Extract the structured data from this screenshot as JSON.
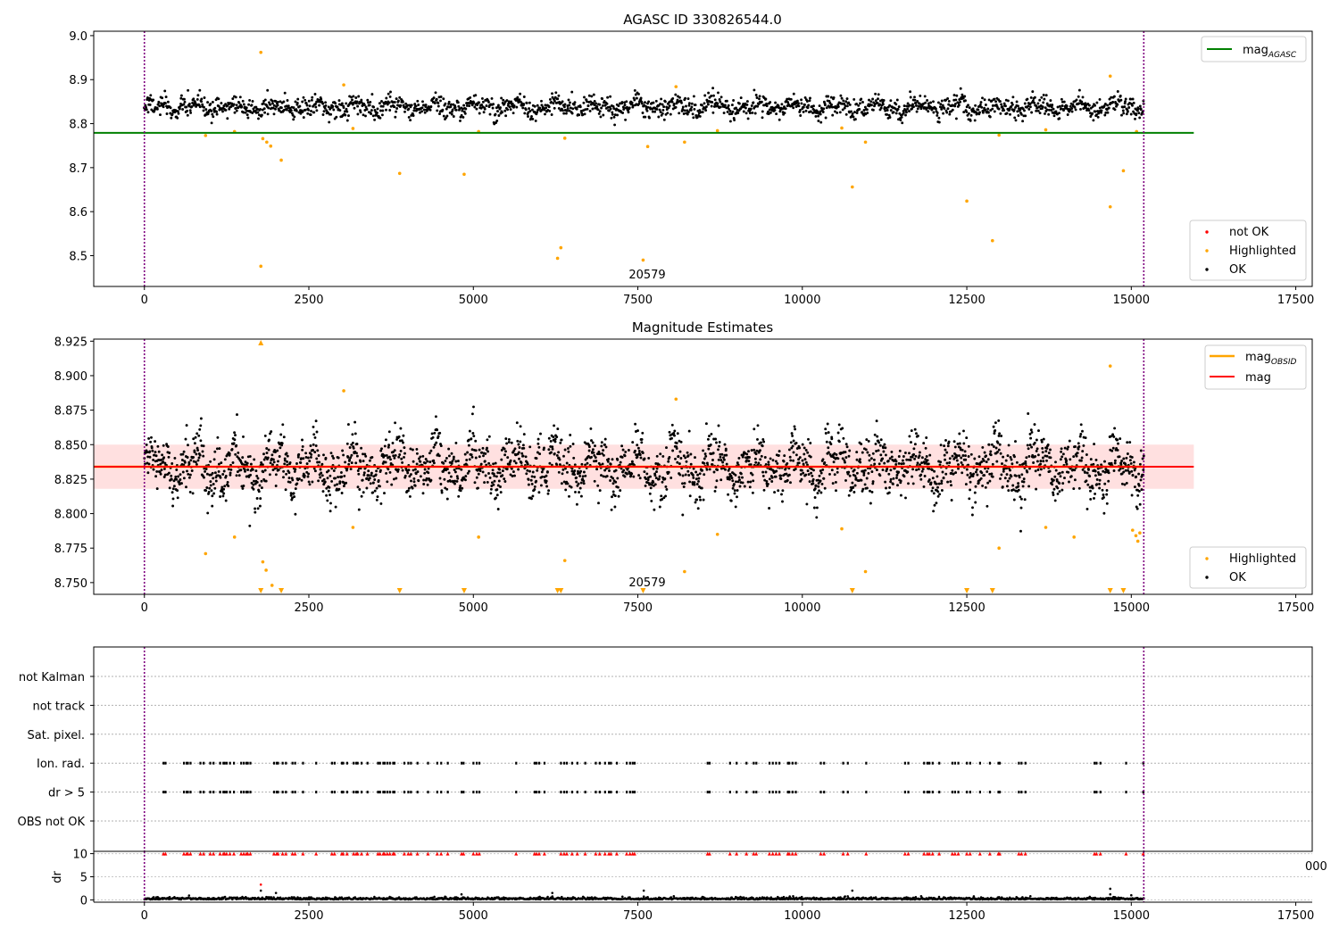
{
  "chart_data": [
    {
      "type": "scatter",
      "title": "AGASC ID 330826544.0",
      "xlabel": "",
      "ylabel": "",
      "xlim": [
        -770,
        17750
      ],
      "ylim": [
        8.43,
        9.01
      ],
      "x_ticks": [
        "0",
        "2500",
        "5000",
        "7500",
        "10000",
        "12500",
        "15000",
        "17500"
      ],
      "y_ticks": [
        "8.5",
        "8.6",
        "8.7",
        "8.8",
        "8.9",
        "9.0"
      ],
      "annotation": "20579",
      "reference_line": {
        "label": "mag_AGASC",
        "value": 8.779,
        "x_end": 15950,
        "color": "#008000"
      },
      "vertical_lines": [
        0,
        15190
      ],
      "ok_series": {
        "name": "OK",
        "color": "#000000",
        "x_start": 0,
        "x_end": 15190,
        "mean": 8.838,
        "spread": 0.018,
        "point_count": 1900
      },
      "highlighted": {
        "name": "Highlighted",
        "color": "#ffa500",
        "points": [
          [
            930,
            8.773
          ],
          [
            1370,
            8.782
          ],
          [
            1770,
            8.962
          ],
          [
            1770,
            8.476
          ],
          [
            1800,
            8.766
          ],
          [
            1860,
            8.758
          ],
          [
            1920,
            8.749
          ],
          [
            2080,
            8.717
          ],
          [
            3030,
            8.888
          ],
          [
            3170,
            8.789
          ],
          [
            3880,
            8.687
          ],
          [
            4860,
            8.685
          ],
          [
            5080,
            8.782
          ],
          [
            6280,
            8.494
          ],
          [
            6330,
            8.518
          ],
          [
            6390,
            8.767
          ],
          [
            7580,
            8.49
          ],
          [
            7650,
            8.748
          ],
          [
            8080,
            8.884
          ],
          [
            8210,
            8.758
          ],
          [
            8710,
            8.784
          ],
          [
            10600,
            8.79
          ],
          [
            10760,
            8.656
          ],
          [
            10960,
            8.758
          ],
          [
            12500,
            8.624
          ],
          [
            12890,
            8.534
          ],
          [
            12990,
            8.774
          ],
          [
            13700,
            8.786
          ],
          [
            14680,
            8.908
          ],
          [
            14680,
            8.611
          ],
          [
            14880,
            8.693
          ],
          [
            15080,
            8.782
          ]
        ]
      },
      "not_ok": {
        "name": "not OK",
        "color": "#ff0000"
      },
      "legends": [
        {
          "items": [
            {
              "label": "mag",
              "sub": "AGASC",
              "color": "#008000"
            }
          ]
        },
        {
          "items": [
            {
              "label": "not OK",
              "color": "#ff0000"
            },
            {
              "label": "Highlighted",
              "color": "#ffa500"
            },
            {
              "label": "OK",
              "color": "#000000"
            }
          ]
        }
      ]
    },
    {
      "type": "scatter",
      "title": "Magnitude Estimates",
      "xlabel": "",
      "ylabel": "",
      "xlim": [
        -770,
        17750
      ],
      "ylim": [
        8.7415,
        8.9265
      ],
      "x_ticks": [
        "0",
        "2500",
        "5000",
        "7500",
        "10000",
        "12500",
        "15000",
        "17500"
      ],
      "y_ticks": [
        "8.750",
        "8.775",
        "8.800",
        "8.825",
        "8.850",
        "8.875",
        "8.900",
        "8.925"
      ],
      "annotation": "20579",
      "band": {
        "low": 8.818,
        "high": 8.85,
        "x_end": 15950,
        "color": "#ffcccc"
      },
      "mag_line": {
        "label": "mag",
        "value": 8.834,
        "color": "#ff0000"
      },
      "obsid_line": {
        "label": "mag_OBSID",
        "value": 8.834,
        "color": "#ffa500"
      },
      "vertical_lines": [
        0,
        15190
      ],
      "ok_series": {
        "name": "OK",
        "color": "#000000",
        "x_start": 0,
        "x_end": 15190,
        "mean": 8.834,
        "spread": 0.016,
        "point_count": 2600
      },
      "highlighted": {
        "name": "Highlighted",
        "color": "#ffa500",
        "points": [
          [
            930,
            8.771
          ],
          [
            1370,
            8.783
          ],
          [
            1800,
            8.765
          ],
          [
            1850,
            8.759
          ],
          [
            1940,
            8.748
          ],
          [
            3030,
            8.889
          ],
          [
            3170,
            8.79
          ],
          [
            5080,
            8.783
          ],
          [
            6390,
            8.766
          ],
          [
            8080,
            8.883
          ],
          [
            8210,
            8.758
          ],
          [
            8710,
            8.785
          ],
          [
            10600,
            8.789
          ],
          [
            10960,
            8.758
          ],
          [
            12990,
            8.775
          ],
          [
            13700,
            8.79
          ],
          [
            14130,
            8.783
          ],
          [
            14680,
            8.907
          ],
          [
            15020,
            8.788
          ],
          [
            15070,
            8.784
          ],
          [
            15100,
            8.78
          ],
          [
            15130,
            8.786
          ]
        ]
      },
      "below_range_markers": [
        1770,
        2080,
        3880,
        4860,
        6280,
        6330,
        7580,
        10760,
        12500,
        12890,
        14680,
        14880
      ],
      "above_range_markers": [
        1770
      ],
      "legends": [
        {
          "items": [
            {
              "label": "mag",
              "sub": "OBSID",
              "color": "#ffa500"
            },
            {
              "label": "mag",
              "color": "#ff0000"
            }
          ]
        },
        {
          "items": [
            {
              "label": "Highlighted",
              "color": "#ffa500"
            },
            {
              "label": "OK",
              "color": "#000000"
            }
          ]
        }
      ]
    },
    {
      "type": "scatter",
      "title": "",
      "xlabel": "",
      "ylabel": "",
      "xlim": [
        -770,
        17750
      ],
      "categories": [
        "not Kalman",
        "not track",
        "Sat. pixel.",
        "Ion. rad.",
        "dr > 5",
        "OBS not OK"
      ],
      "flag_times": [
        290,
        320,
        600,
        640,
        660,
        700,
        850,
        900,
        1000,
        1050,
        1150,
        1200,
        1220,
        1250,
        1300,
        1360,
        1470,
        1510,
        1550,
        1570,
        1610,
        1970,
        2010,
        2030,
        2100,
        2150,
        2250,
        2290,
        2410,
        2610,
        2850,
        2890,
        3000,
        3020,
        3080,
        3180,
        3220,
        3240,
        3300,
        3390,
        3550,
        3580,
        3630,
        3650,
        3690,
        3730,
        3780,
        3800,
        3950,
        4010,
        4050,
        4150,
        4310,
        4450,
        4510,
        4610,
        4820,
        4850,
        5000,
        5050,
        5090,
        5650,
        5930,
        5960,
        6000,
        6080,
        6330,
        6380,
        6420,
        6500,
        6580,
        6700,
        6860,
        6920,
        7000,
        7060,
        7090,
        7180,
        7330,
        7380,
        7420,
        7450,
        8560,
        8590,
        8900,
        9000,
        9150,
        9260,
        9300,
        9500,
        9550,
        9600,
        9650,
        9780,
        9800,
        9850,
        9900,
        10280,
        10330,
        10620,
        10690,
        10970,
        11560,
        11610,
        11850,
        11900,
        11930,
        11980,
        12080,
        12280,
        12320,
        12370,
        12500,
        12550,
        12700,
        12850,
        12980,
        13000,
        13290,
        13330,
        13390,
        14440,
        14470,
        14530,
        14920,
        15180
      ],
      "dr_panel": {
        "ylabel": "dr",
        "y_ticks": [
          "0",
          "5",
          "10"
        ],
        "ylim": [
          -0.5,
          10.5
        ],
        "cap_value": 10,
        "cap_color": "#ff0000",
        "base_color": "#000000",
        "outliers": [
          [
            1770,
            3.3
          ],
          [
            1770,
            2.0
          ],
          [
            2000,
            1.5
          ],
          [
            4820,
            1.2
          ],
          [
            6200,
            1.5
          ],
          [
            7590,
            2.0
          ],
          [
            10760,
            2.0
          ],
          [
            14680,
            2.4
          ],
          [
            14680,
            1.2
          ],
          [
            15000,
            1.0
          ]
        ]
      },
      "clipped_tick_label": "000",
      "vertical_lines": [
        0,
        15190
      ],
      "x_ticks": [
        "0",
        "2500",
        "5000",
        "7500",
        "10000",
        "12500",
        "15000",
        "17500"
      ]
    }
  ]
}
